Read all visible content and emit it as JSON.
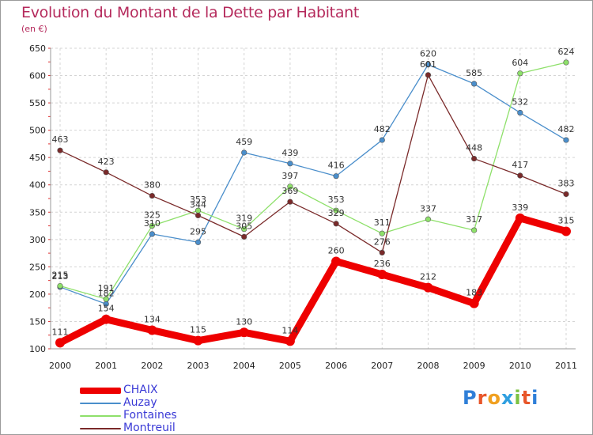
{
  "title": "Evolution du Montant de la Dette par Habitant",
  "subtitle": "(en €)",
  "brand": {
    "letters": [
      "P",
      "r",
      "o",
      "x",
      "i",
      "t",
      "i"
    ],
    "colors": [
      "#2f7fd8",
      "#e8562a",
      "#f0a020",
      "#2f9fe0",
      "#7cc242",
      "#e8562a",
      "#2f7fd8"
    ]
  },
  "chart_data": {
    "type": "line",
    "title": "Evolution du Montant de la Dette par Habitant",
    "subtitle": "(en €)",
    "xlabel": "",
    "ylabel": "",
    "x": [
      "2000",
      "2001",
      "2002",
      "2003",
      "2004",
      "2005",
      "2006",
      "2007",
      "2008",
      "2009",
      "2010",
      "2011"
    ],
    "ylim": [
      100,
      650
    ],
    "yticks": [
      "100",
      "150",
      "200",
      "250",
      "300",
      "350",
      "400",
      "450",
      "500",
      "550",
      "600",
      "650"
    ],
    "grid": true,
    "legend_position": "bottom-left",
    "series": [
      {
        "name": "CHAIX",
        "color": "#ee0000",
        "emphasis": true,
        "values": [
          111,
          154,
          134,
          115,
          130,
          114,
          260,
          236,
          212,
          183,
          339,
          315
        ],
        "labels": [
          "111",
          "154",
          "134",
          "115",
          "130",
          "114",
          "260",
          "236",
          "212",
          "183",
          "339",
          "315"
        ]
      },
      {
        "name": "Auzay",
        "color": "#4a8ecb",
        "values": [
          213,
          182,
          310,
          295,
          459,
          439,
          416,
          482,
          620,
          585,
          532,
          482
        ],
        "labels": [
          "213",
          "182",
          "310",
          "295",
          "459",
          "439",
          "416",
          "482",
          "620",
          "585",
          "532",
          "482"
        ]
      },
      {
        "name": "Fontaines",
        "color": "#8ee06a",
        "values": [
          215,
          191,
          325,
          353,
          319,
          397,
          353,
          311,
          337,
          317,
          604,
          624
        ],
        "labels": [
          "215",
          "191",
          "325",
          "353",
          "319",
          "397",
          "353",
          "311",
          "337",
          "317",
          "604",
          "624"
        ]
      },
      {
        "name": "Montreuil",
        "color": "#7a2a2a",
        "values": [
          463,
          423,
          380,
          344,
          305,
          369,
          329,
          276,
          601,
          448,
          417,
          383
        ],
        "labels": [
          "463",
          "423",
          "380",
          "344",
          "305",
          "369",
          "329",
          "276",
          "601",
          "448",
          "417",
          "383"
        ]
      }
    ]
  }
}
